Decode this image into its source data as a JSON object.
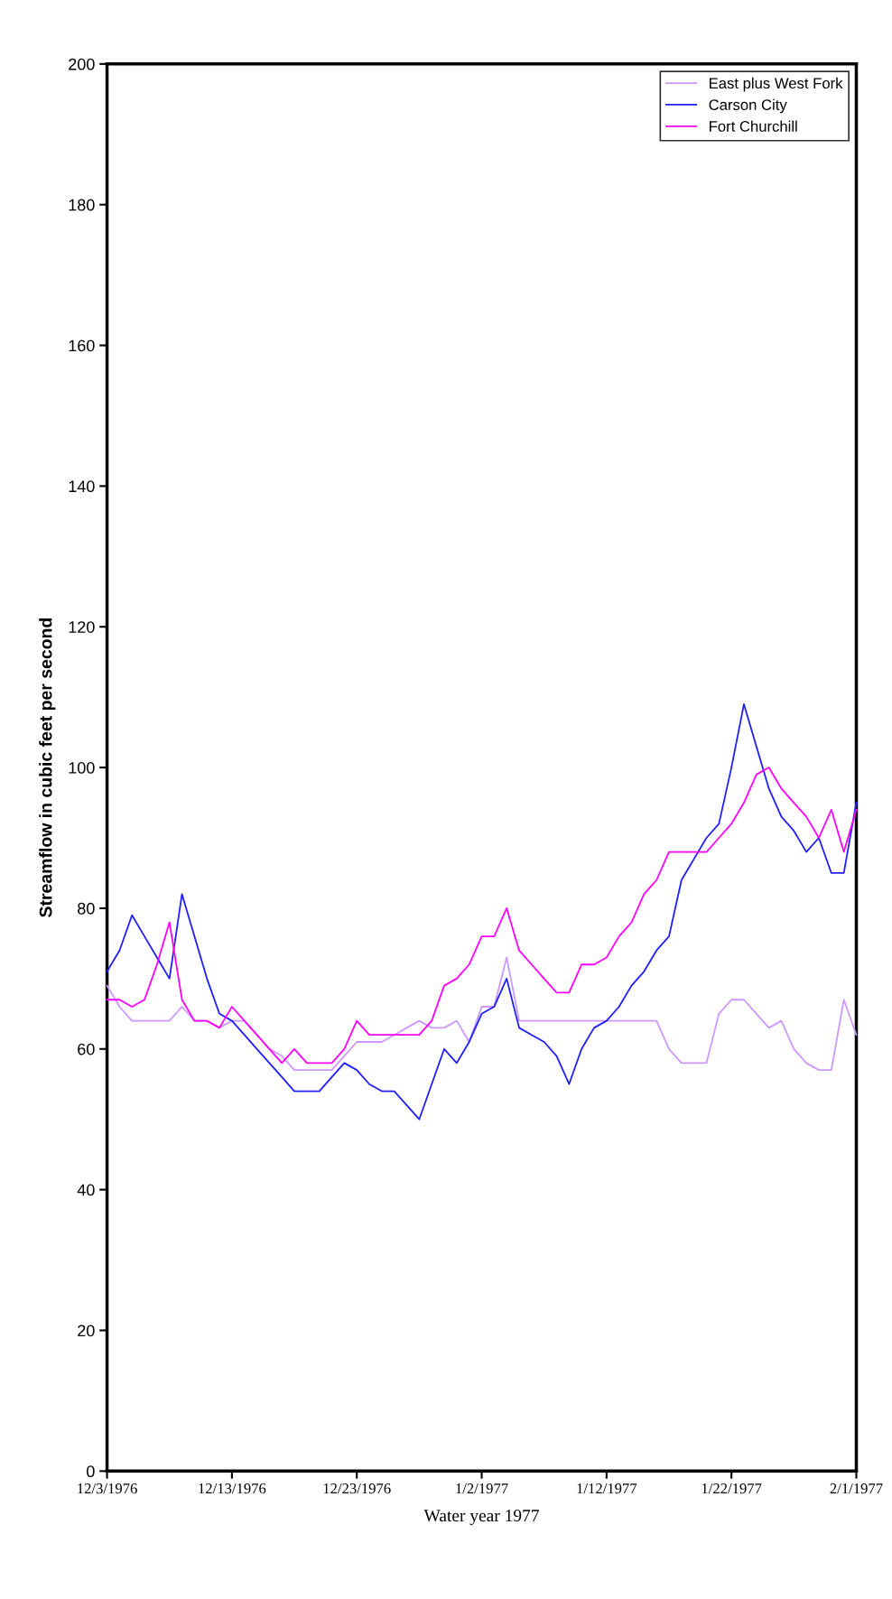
{
  "chart_data": {
    "type": "line",
    "xlabel": "Water year 1977",
    "ylabel": "Streamflow in cubic feet per second",
    "x": [
      "1976-12-03",
      "1976-12-04",
      "1976-12-05",
      "1976-12-06",
      "1976-12-07",
      "1976-12-08",
      "1976-12-09",
      "1976-12-10",
      "1976-12-11",
      "1976-12-12",
      "1976-12-13",
      "1976-12-14",
      "1976-12-15",
      "1976-12-16",
      "1976-12-17",
      "1976-12-18",
      "1976-12-19",
      "1976-12-20",
      "1976-12-21",
      "1976-12-22",
      "1976-12-23",
      "1976-12-24",
      "1976-12-25",
      "1976-12-26",
      "1976-12-27",
      "1976-12-28",
      "1976-12-29",
      "1976-12-30",
      "1976-12-31",
      "1977-01-01",
      "1977-01-02",
      "1977-01-03",
      "1977-01-04",
      "1977-01-05",
      "1977-01-06",
      "1977-01-07",
      "1977-01-08",
      "1977-01-09",
      "1977-01-10",
      "1977-01-11",
      "1977-01-12",
      "1977-01-13",
      "1977-01-14",
      "1977-01-15",
      "1977-01-16",
      "1977-01-17",
      "1977-01-18",
      "1977-01-19",
      "1977-01-20",
      "1977-01-21",
      "1977-01-22",
      "1977-01-23",
      "1977-01-24",
      "1977-01-25",
      "1977-01-26",
      "1977-01-27",
      "1977-01-28",
      "1977-01-29",
      "1977-01-30",
      "1977-01-31",
      "1977-02-01"
    ],
    "series": [
      {
        "name": "East plus West Fork",
        "color": "#cc99ff",
        "values": [
          69,
          66,
          64,
          64,
          64,
          64,
          66,
          64,
          64,
          63,
          64,
          64,
          62,
          60,
          59,
          57,
          57,
          57,
          57,
          59,
          61,
          61,
          61,
          62,
          63,
          64,
          63,
          63,
          64,
          61,
          66,
          66,
          73,
          64,
          64,
          64,
          64,
          64,
          64,
          64,
          64,
          64,
          64,
          64,
          64,
          60,
          58,
          58,
          58,
          65,
          67,
          67,
          65,
          63,
          64,
          60,
          58,
          57,
          57,
          67,
          62
        ]
      },
      {
        "name": "Carson City",
        "color": "#1f1fff",
        "values": [
          71,
          74,
          79,
          76,
          73,
          70,
          82,
          76,
          70,
          65,
          64,
          62,
          60,
          58,
          56,
          54,
          54,
          54,
          56,
          58,
          57,
          55,
          54,
          54,
          52,
          50,
          55,
          60,
          58,
          61,
          65,
          66,
          70,
          63,
          62,
          61,
          59,
          55,
          60,
          63,
          64,
          66,
          69,
          71,
          74,
          76,
          84,
          87,
          90,
          92,
          100,
          109,
          103,
          97,
          93,
          91,
          88,
          90,
          85,
          85,
          95
        ]
      },
      {
        "name": "Fort Churchill",
        "color": "#ff00ff",
        "values": [
          67,
          67,
          66,
          67,
          72,
          78,
          67,
          64,
          64,
          63,
          66,
          64,
          62,
          60,
          58,
          60,
          58,
          58,
          58,
          60,
          64,
          62,
          62,
          62,
          62,
          62,
          64,
          69,
          70,
          72,
          76,
          76,
          80,
          74,
          72,
          70,
          68,
          68,
          72,
          72,
          73,
          76,
          78,
          82,
          84,
          88,
          88,
          88,
          88,
          90,
          92,
          95,
          99,
          100,
          97,
          95,
          93,
          90,
          94,
          88,
          94
        ]
      }
    ],
    "xlim": [
      "1976-12-03",
      "1977-02-01"
    ],
    "xticks": [
      {
        "value": "1976-12-03",
        "label": "12/3/1976"
      },
      {
        "value": "1976-12-13",
        "label": "12/13/1976"
      },
      {
        "value": "1976-12-23",
        "label": "12/23/1976"
      },
      {
        "value": "1977-01-02",
        "label": "1/2/1977"
      },
      {
        "value": "1977-01-12",
        "label": "1/12/1977"
      },
      {
        "value": "1977-01-22",
        "label": "1/22/1977"
      },
      {
        "value": "1977-02-01",
        "label": "2/1/1977"
      }
    ],
    "ylim": [
      0,
      200
    ],
    "yticks": [
      0,
      20,
      40,
      60,
      80,
      100,
      120,
      140,
      160,
      180,
      200
    ],
    "grid": false,
    "legend": "top right",
    "marker": "none",
    "line_style": "solid"
  }
}
